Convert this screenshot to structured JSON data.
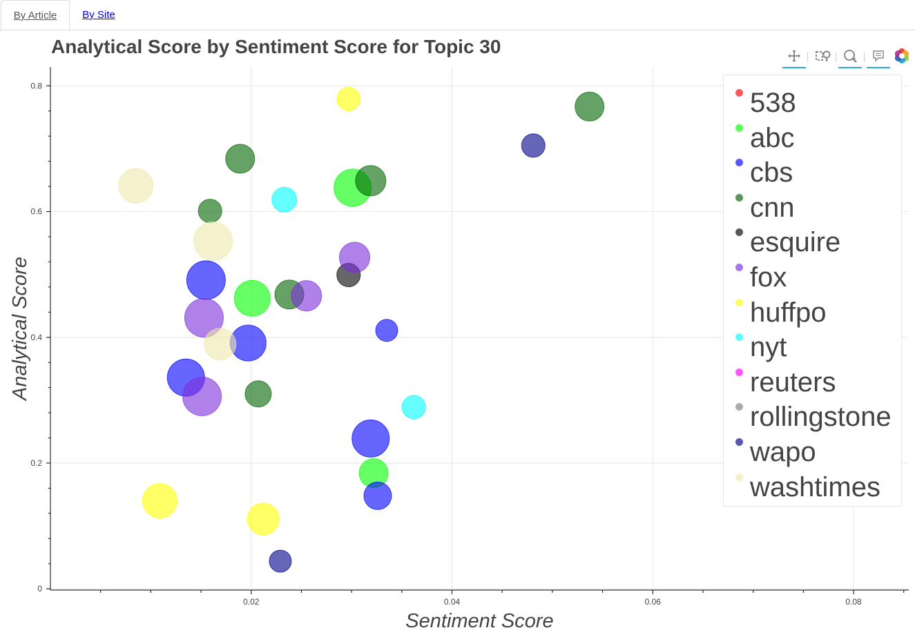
{
  "tabs": [
    {
      "label": "By Article",
      "active": true
    },
    {
      "label": "By Site",
      "active": false
    }
  ],
  "toolbar": {
    "tools": [
      "pan-icon",
      "box-zoom-icon",
      "wheel-zoom-icon",
      "hover-icon",
      "bokeh-logo-icon"
    ]
  },
  "chart_data": {
    "type": "scatter",
    "title": "Analytical Score by Sentiment Score for Topic 30",
    "xlabel": "Sentiment Score",
    "ylabel": "Analytical Score",
    "xlim": [
      0.0,
      0.0855
    ],
    "ylim": [
      -0.002,
      0.83
    ],
    "x_ticks": [
      0.02,
      0.04,
      0.06,
      0.08
    ],
    "x_tick_labels": [
      "0.02",
      "0.04",
      "0.06",
      "0.08"
    ],
    "y_ticks": [
      0,
      0.2,
      0.4,
      0.6,
      0.8
    ],
    "y_tick_labels": [
      "0",
      "0.2",
      "0.4",
      "0.6",
      "0.8"
    ],
    "grid": true,
    "legend_position": "top-right",
    "series": [
      {
        "name": "538",
        "color": "#ff0000",
        "points": []
      },
      {
        "name": "abc",
        "color": "#00ff00",
        "points": [
          {
            "x": 0.0301,
            "y": 0.638,
            "r": 27
          },
          {
            "x": 0.0201,
            "y": 0.462,
            "r": 26
          },
          {
            "x": 0.0322,
            "y": 0.184,
            "r": 21
          }
        ]
      },
      {
        "name": "cbs",
        "color": "#0000ff",
        "points": [
          {
            "x": 0.0155,
            "y": 0.491,
            "r": 28
          },
          {
            "x": 0.0197,
            "y": 0.391,
            "r": 26
          },
          {
            "x": 0.0135,
            "y": 0.336,
            "r": 27
          },
          {
            "x": 0.0335,
            "y": 0.411,
            "r": 16
          },
          {
            "x": 0.0319,
            "y": 0.239,
            "r": 27
          },
          {
            "x": 0.0326,
            "y": 0.148,
            "r": 20
          }
        ]
      },
      {
        "name": "cnn",
        "color": "#006400",
        "points": [
          {
            "x": 0.0537,
            "y": 0.767,
            "r": 21
          },
          {
            "x": 0.0189,
            "y": 0.684,
            "r": 21
          },
          {
            "x": 0.0319,
            "y": 0.649,
            "r": 22
          },
          {
            "x": 0.0159,
            "y": 0.601,
            "r": 17
          },
          {
            "x": 0.0238,
            "y": 0.468,
            "r": 21
          },
          {
            "x": 0.0207,
            "y": 0.31,
            "r": 19
          }
        ]
      },
      {
        "name": "esquire",
        "color": "#000000",
        "points": [
          {
            "x": 0.0297,
            "y": 0.499,
            "r": 17
          }
        ]
      },
      {
        "name": "fox",
        "color": "#7b2fdb",
        "points": [
          {
            "x": 0.0303,
            "y": 0.527,
            "r": 22
          },
          {
            "x": 0.0255,
            "y": 0.466,
            "r": 22
          },
          {
            "x": 0.0153,
            "y": 0.431,
            "r": 28
          },
          {
            "x": 0.0151,
            "y": 0.306,
            "r": 28
          }
        ]
      },
      {
        "name": "huffpo",
        "color": "#ffff00",
        "points": [
          {
            "x": 0.0297,
            "y": 0.779,
            "r": 17
          },
          {
            "x": 0.0109,
            "y": 0.14,
            "r": 25
          },
          {
            "x": 0.0212,
            "y": 0.111,
            "r": 23
          }
        ]
      },
      {
        "name": "nyt",
        "color": "#00ffff",
        "points": [
          {
            "x": 0.0233,
            "y": 0.619,
            "r": 18
          },
          {
            "x": 0.0362,
            "y": 0.289,
            "r": 17
          }
        ]
      },
      {
        "name": "reuters",
        "color": "#ff00ff",
        "points": []
      },
      {
        "name": "rollingstone",
        "color": "#808080",
        "points": []
      },
      {
        "name": "wapo",
        "color": "#00008b",
        "points": [
          {
            "x": 0.0481,
            "y": 0.705,
            "r": 17
          },
          {
            "x": 0.0229,
            "y": 0.044,
            "r": 16
          }
        ]
      },
      {
        "name": "washtimes",
        "color": "#eee8aa",
        "points": [
          {
            "x": 0.0085,
            "y": 0.641,
            "r": 25
          },
          {
            "x": 0.0162,
            "y": 0.553,
            "r": 28
          },
          {
            "x": 0.0169,
            "y": 0.389,
            "r": 23
          }
        ]
      }
    ]
  }
}
